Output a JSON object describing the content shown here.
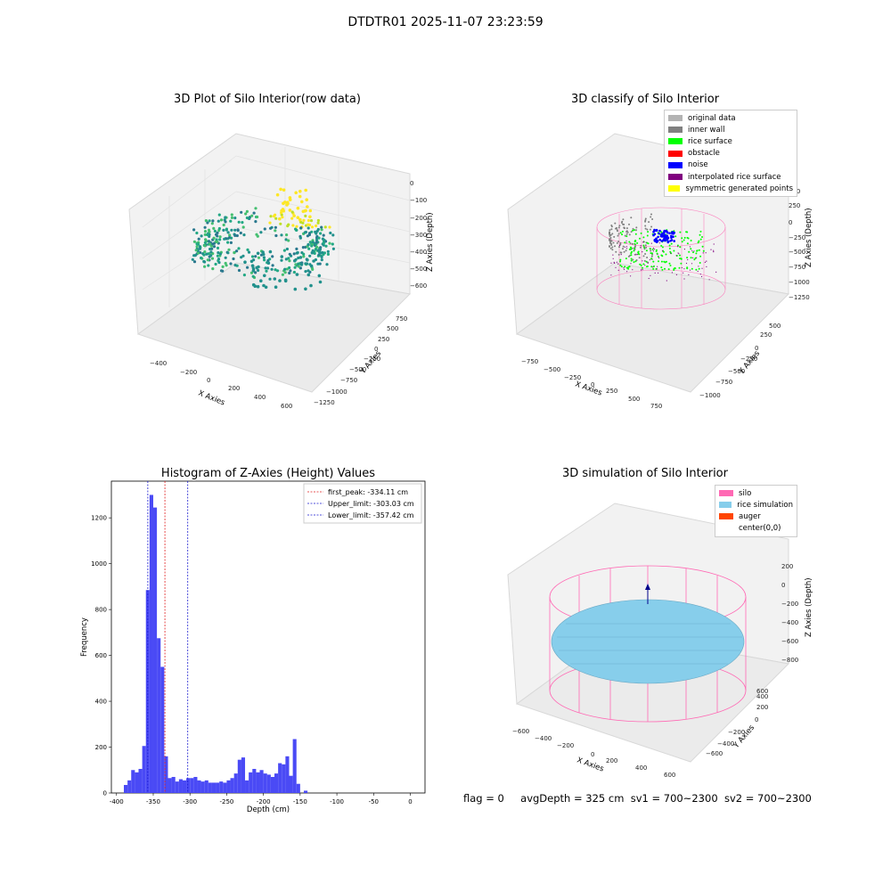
{
  "figure": {
    "suptitle": "DTDTR01 2025-11-07 23:23:59",
    "footer": {
      "flag": "flag = 0",
      "avg_depth": "avgDepth = 325 cm",
      "sv1": "sv1 = 700~2300",
      "sv2": "sv2 = 700~2300"
    }
  },
  "colors": {
    "histogram_bar": "#4a4af5",
    "first_peak_line": "#e02020",
    "limit_line": "#1a1ad0",
    "silo": "#ff69b4",
    "rice_simulation": "#87ceeb",
    "auger": "#ff4500",
    "original_data": "#b3b3b3",
    "inner_wall": "#808080",
    "rice_surface": "#00ff00",
    "obstacle": "#ff0000",
    "noise": "#0000ff",
    "interpolated_rice_surface": "#800080",
    "symmetric_generated_points": "#ffff00"
  },
  "chart_data": [
    {
      "type": "scatter",
      "title": "3D Plot of Silo Interior(row data)",
      "xlabel": "X Axies",
      "ylabel": "Y Axies",
      "zlabel": "Z Axies (Depth)",
      "x_ticks": [
        "−400",
        "−200",
        "0",
        "200",
        "400",
        "600"
      ],
      "y_ticks": [
        "−1250",
        "−1000",
        "−750",
        "−500",
        "−250",
        "0",
        "250",
        "500",
        "750"
      ],
      "z_ticks": [
        "−600",
        "−500",
        "−400",
        "−300",
        "−200",
        "−100",
        "0"
      ],
      "colormap": "viridis"
    },
    {
      "type": "scatter",
      "title": "3D classify of Silo Interior",
      "xlabel": "X Axies",
      "ylabel": "Y Axies",
      "zlabel": "Z Axies (Depth)",
      "x_ticks": [
        "−750",
        "−500",
        "−250",
        "0",
        "250",
        "500",
        "750"
      ],
      "y_ticks": [
        "−1000",
        "−750",
        "−500",
        "−250",
        "0",
        "250",
        "500"
      ],
      "z_ticks": [
        "−1250",
        "−1000",
        "−750",
        "−500",
        "−250",
        "0",
        "250",
        "500"
      ],
      "legend": [
        {
          "label": "original data",
          "color": "#b3b3b3"
        },
        {
          "label": "inner wall",
          "color": "#808080"
        },
        {
          "label": "rice surface",
          "color": "#00ff00"
        },
        {
          "label": "obstacle",
          "color": "#ff0000"
        },
        {
          "label": "noise",
          "color": "#0000ff"
        },
        {
          "label": "interpolated rice surface",
          "color": "#800080"
        },
        {
          "label": "symmetric generated points",
          "color": "#ffff00"
        }
      ]
    },
    {
      "type": "bar",
      "title": "Histogram of Z-Axies (Height) Values",
      "xlabel": "Depth (cm)",
      "ylabel": "Frequency",
      "xlim": [
        -407,
        20
      ],
      "ylim": [
        0,
        1360
      ],
      "x_ticks": [
        -400,
        -350,
        -300,
        -250,
        -200,
        -150,
        -100,
        -50,
        0
      ],
      "y_ticks": [
        0,
        200,
        400,
        600,
        800,
        1000,
        1200
      ],
      "bins": [
        [
          -390,
          -385,
          35
        ],
        [
          -385,
          -380,
          55
        ],
        [
          -380,
          -375,
          100
        ],
        [
          -375,
          -370,
          90
        ],
        [
          -370,
          -365,
          105
        ],
        [
          -365,
          -360,
          205
        ],
        [
          -360,
          -355,
          885
        ],
        [
          -355,
          -350,
          1300
        ],
        [
          -350,
          -345,
          1245
        ],
        [
          -345,
          -340,
          675
        ],
        [
          -340,
          -335,
          550
        ],
        [
          -335,
          -330,
          160
        ],
        [
          -330,
          -325,
          65
        ],
        [
          -325,
          -320,
          70
        ],
        [
          -320,
          -315,
          50
        ],
        [
          -315,
          -310,
          60
        ],
        [
          -310,
          -305,
          55
        ],
        [
          -305,
          -300,
          65
        ],
        [
          -300,
          -295,
          65
        ],
        [
          -295,
          -290,
          70
        ],
        [
          -290,
          -285,
          55
        ],
        [
          -285,
          -280,
          50
        ],
        [
          -280,
          -275,
          55
        ],
        [
          -275,
          -270,
          45
        ],
        [
          -270,
          -265,
          45
        ],
        [
          -265,
          -260,
          45
        ],
        [
          -260,
          -255,
          50
        ],
        [
          -255,
          -250,
          45
        ],
        [
          -250,
          -245,
          55
        ],
        [
          -245,
          -240,
          65
        ],
        [
          -240,
          -235,
          85
        ],
        [
          -235,
          -230,
          145
        ],
        [
          -230,
          -225,
          155
        ],
        [
          -225,
          -220,
          55
        ],
        [
          -220,
          -215,
          90
        ],
        [
          -215,
          -210,
          105
        ],
        [
          -210,
          -205,
          90
        ],
        [
          -205,
          -200,
          100
        ],
        [
          -200,
          -195,
          85
        ],
        [
          -195,
          -190,
          80
        ],
        [
          -190,
          -185,
          70
        ],
        [
          -185,
          -180,
          85
        ],
        [
          -180,
          -175,
          130
        ],
        [
          -175,
          -170,
          125
        ],
        [
          -170,
          -165,
          160
        ],
        [
          -165,
          -160,
          75
        ],
        [
          -160,
          -155,
          235
        ],
        [
          -155,
          -150,
          40
        ],
        [
          -150,
          -145,
          0
        ],
        [
          -145,
          -140,
          10
        ]
      ],
      "lines": [
        {
          "label": "first_peak: -334.11 cm",
          "x": -334.11,
          "color": "#e02020"
        },
        {
          "label": "Upper_limit: -303.03 cm",
          "x": -303.03,
          "color": "#1a1ad0"
        },
        {
          "label": "Lower_limit: -357.42 cm",
          "x": -357.42,
          "color": "#1a1ad0"
        }
      ],
      "legend_position": "upper right"
    },
    {
      "type": "scatter",
      "title": "3D simulation of Silo Interior",
      "xlabel": "X Axies",
      "ylabel": "Y Axies",
      "zlabel": "Z Axies (Depth)",
      "x_ticks": [
        "−600",
        "−400",
        "−200",
        "0",
        "200",
        "400",
        "600"
      ],
      "y_ticks": [
        "−600",
        "−400",
        "−200",
        "0",
        "200",
        "400",
        "600"
      ],
      "z_ticks": [
        "−800",
        "−600",
        "−400",
        "−200",
        "0",
        "200"
      ],
      "legend": [
        {
          "label": "silo",
          "color": "#ff69b4"
        },
        {
          "label": "rice simulation",
          "color": "#87ceeb"
        },
        {
          "label": "auger",
          "color": "#ff4500"
        },
        {
          "label": "center(0,0)",
          "color": "#ffffff"
        }
      ]
    }
  ]
}
